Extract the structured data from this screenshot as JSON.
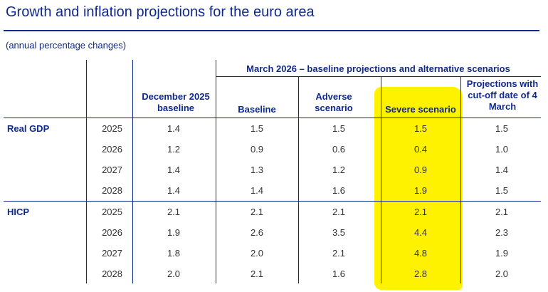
{
  "title": "Growth and inflation projections for the euro area",
  "subtitle": "(annual percentage changes)",
  "group_header": "March 2026 – baseline projections and alternative scenarios",
  "columns": {
    "dec_baseline": "December 2025 baseline",
    "baseline": "Baseline",
    "adverse": "Adverse scenario",
    "severe": "Severe scenario",
    "cutoff": "Projections with cut-off date of 4 March"
  },
  "sections": [
    {
      "label": "Real GDP",
      "rows": [
        {
          "year": "2025",
          "dec_baseline": "1.4",
          "baseline": "1.5",
          "adverse": "1.5",
          "severe": "1.5",
          "cutoff": "1.5"
        },
        {
          "year": "2026",
          "dec_baseline": "1.2",
          "baseline": "0.9",
          "adverse": "0.6",
          "severe": "0.4",
          "cutoff": "1.0"
        },
        {
          "year": "2027",
          "dec_baseline": "1.4",
          "baseline": "1.3",
          "adverse": "1.2",
          "severe": "0.9",
          "cutoff": "1.4"
        },
        {
          "year": "2028",
          "dec_baseline": "1.4",
          "baseline": "1.4",
          "adverse": "1.6",
          "severe": "1.9",
          "cutoff": "1.5"
        }
      ]
    },
    {
      "label": "HICP",
      "rows": [
        {
          "year": "2025",
          "dec_baseline": "2.1",
          "baseline": "2.1",
          "adverse": "2.1",
          "severe": "2.1",
          "cutoff": "2.1"
        },
        {
          "year": "2026",
          "dec_baseline": "1.9",
          "baseline": "2.6",
          "adverse": "3.5",
          "severe": "4.4",
          "cutoff": "2.3"
        },
        {
          "year": "2027",
          "dec_baseline": "1.8",
          "baseline": "2.0",
          "adverse": "2.1",
          "severe": "4.8",
          "cutoff": "1.9"
        },
        {
          "year": "2028",
          "dec_baseline": "2.0",
          "baseline": "2.1",
          "adverse": "1.6",
          "severe": "2.8",
          "cutoff": "2.0"
        }
      ]
    }
  ],
  "colors": {
    "primary": "#10298e",
    "highlight": "#fff200",
    "text": "#333333"
  }
}
